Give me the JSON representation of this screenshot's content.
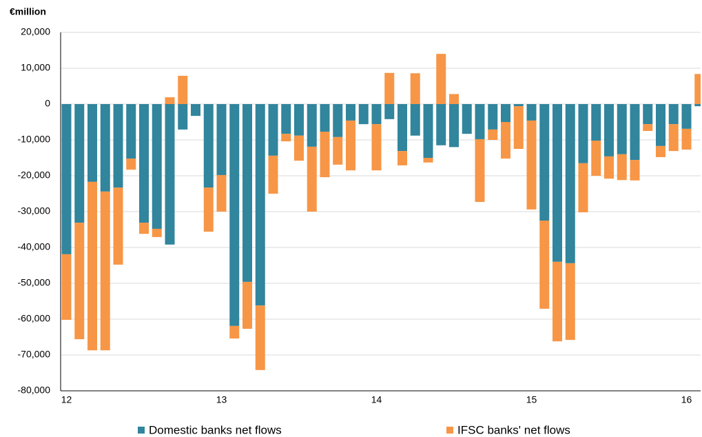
{
  "chart_data": {
    "type": "stacked-bar",
    "y_unit": "€million",
    "categories": [
      "12",
      null,
      null,
      null,
      null,
      null,
      null,
      null,
      null,
      null,
      null,
      null,
      "13",
      null,
      null,
      null,
      null,
      null,
      null,
      null,
      null,
      null,
      null,
      null,
      "14",
      null,
      null,
      null,
      null,
      null,
      null,
      null,
      null,
      null,
      null,
      null,
      "15",
      null,
      null,
      null,
      null,
      null,
      null,
      null,
      null,
      null,
      null,
      null,
      "16",
      null
    ],
    "series": [
      {
        "name": "Domestic banks net flows",
        "color": "#31859c",
        "values": [
          -41900,
          -33100,
          -21700,
          -24400,
          -23300,
          -15200,
          -33100,
          -34800,
          -39200,
          -7100,
          -3300,
          -23300,
          -19800,
          -61900,
          -49600,
          -56200,
          -14400,
          -8300,
          -8800,
          -11900,
          -7700,
          -9200,
          -4600,
          -5600,
          -5600,
          -4200,
          -13100,
          -8800,
          -15000,
          -11500,
          -12000,
          -8300,
          -9800,
          -7100,
          -5000,
          -600,
          -4600,
          -32500,
          -44000,
          -44400,
          -16500,
          -10200,
          -14600,
          -14000,
          -15600,
          -5600,
          -11700,
          -5600,
          -6900,
          -600
        ]
      },
      {
        "name": "IFSC banks' net flows",
        "color": "#f79646",
        "values": [
          -18300,
          -32500,
          -47000,
          -44300,
          -21500,
          -3100,
          -3100,
          -2300,
          1900,
          7900,
          0,
          -12300,
          -10200,
          -3500,
          -13100,
          -18000,
          -10600,
          -2100,
          -7000,
          -18100,
          -12700,
          -7700,
          -13900,
          0,
          -12900,
          8700,
          -4000,
          8600,
          -1300,
          14000,
          2800,
          0,
          -17500,
          -2900,
          -10200,
          -11900,
          -24800,
          -24600,
          -22200,
          -21400,
          -13700,
          -9800,
          -6200,
          -7200,
          -5700,
          -1900,
          -3100,
          -7500,
          -5800,
          8400
        ]
      }
    ],
    "ylim": [
      -80000,
      20000
    ],
    "yticks": [
      {
        "value": -80000,
        "label": "-80,000"
      },
      {
        "value": -70000,
        "label": "-70,000"
      },
      {
        "value": -60000,
        "label": "-60,000"
      },
      {
        "value": -50000,
        "label": "-50,000"
      },
      {
        "value": -40000,
        "label": "-40,000"
      },
      {
        "value": -30000,
        "label": "-30,000"
      },
      {
        "value": -20000,
        "label": "-20,000"
      },
      {
        "value": -10000,
        "label": "-10,000"
      },
      0,
      {
        "value": 10000,
        "label": "10,000"
      },
      {
        "value": 20000,
        "label": "20,000"
      }
    ],
    "grid": true
  }
}
